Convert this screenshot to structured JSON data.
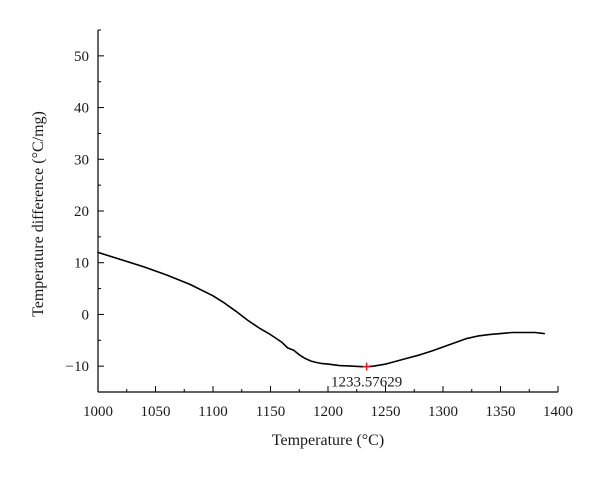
{
  "chart_data": {
    "type": "line",
    "title": "",
    "xlabel": "Temperature (°C)",
    "ylabel": "Temperature difference (°C/mg)",
    "xlim": [
      1000,
      1400
    ],
    "ylim": [
      -15,
      55
    ],
    "xticks": [
      1000,
      1050,
      1100,
      1150,
      1200,
      1250,
      1300,
      1350,
      1400
    ],
    "yticks": [
      -10,
      0,
      10,
      20,
      30,
      40,
      50
    ],
    "ytick_labels": [
      "−10",
      "0",
      "10",
      "20",
      "30",
      "40",
      "50"
    ],
    "grid": false,
    "legend": "none",
    "series": [
      {
        "color": "#000000",
        "x": [
          1000,
          1020,
          1040,
          1060,
          1080,
          1100,
          1110,
          1120,
          1130,
          1140,
          1150,
          1160,
          1165,
          1170,
          1175,
          1180,
          1185,
          1190,
          1195,
          1200,
          1210,
          1220,
          1230,
          1233.57629,
          1240,
          1250,
          1260,
          1270,
          1280,
          1290,
          1300,
          1310,
          1320,
          1330,
          1340,
          1350,
          1360,
          1370,
          1380,
          1388
        ],
        "y": [
          12.0,
          10.6,
          9.2,
          7.6,
          5.8,
          3.6,
          2.2,
          0.6,
          -1.1,
          -2.6,
          -3.9,
          -5.4,
          -6.5,
          -6.9,
          -7.8,
          -8.5,
          -9.0,
          -9.3,
          -9.5,
          -9.6,
          -9.9,
          -10.0,
          -10.1,
          -10.1,
          -10.0,
          -9.6,
          -9.0,
          -8.4,
          -7.8,
          -7.1,
          -6.3,
          -5.5,
          -4.7,
          -4.2,
          -3.9,
          -3.7,
          -3.5,
          -3.5,
          -3.5,
          -3.7
        ]
      }
    ],
    "annotations": [
      {
        "text": "1233.57629",
        "x": 1233.57629,
        "y": -10.1,
        "marker_color": "#e02020"
      }
    ]
  }
}
